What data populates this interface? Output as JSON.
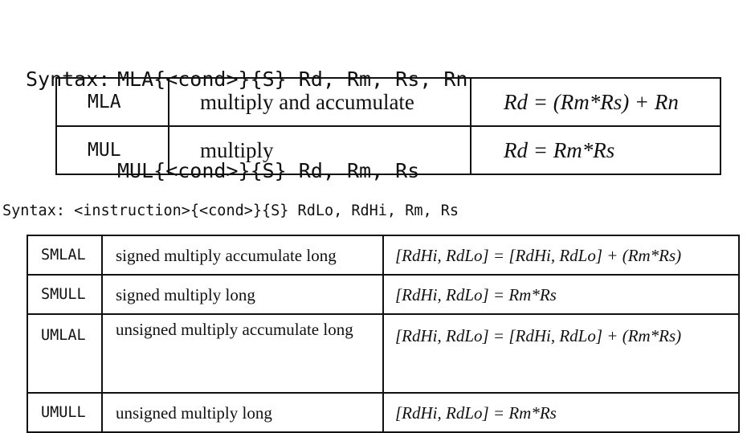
{
  "syntax_block_1": {
    "label": "Syntax:",
    "line1": "MLA{<cond>}{S} Rd, Rm, Rs, Rn",
    "line2": "MUL{<cond>}{S} Rd, Rm, Rs"
  },
  "table1": {
    "rows": [
      {
        "mnemonic": "MLA",
        "description": "multiply and accumulate",
        "operation": "Rd = (Rm*Rs) + Rn"
      },
      {
        "mnemonic": "MUL",
        "description": "multiply",
        "operation": "Rd = Rm*Rs"
      }
    ]
  },
  "syntax_block_2": {
    "text": "Syntax: <instruction>{<cond>}{S} RdLo, RdHi, Rm, Rs"
  },
  "table2": {
    "rows": [
      {
        "mnemonic": "SMLAL",
        "description": "signed multiply accumulate long",
        "operation": "[RdHi, RdLo] = [RdHi, RdLo] + (Rm*Rs)"
      },
      {
        "mnemonic": "SMULL",
        "description": "signed multiply long",
        "operation": "[RdHi, RdLo] = Rm*Rs"
      },
      {
        "mnemonic": "UMLAL",
        "description": "unsigned multiply accumulate long",
        "operation": "[RdHi, RdLo] = [RdHi, RdLo] + (Rm*Rs)"
      },
      {
        "mnemonic": "UMULL",
        "description": "unsigned multiply long",
        "operation": "[RdHi, RdLo] = Rm*Rs"
      }
    ]
  }
}
